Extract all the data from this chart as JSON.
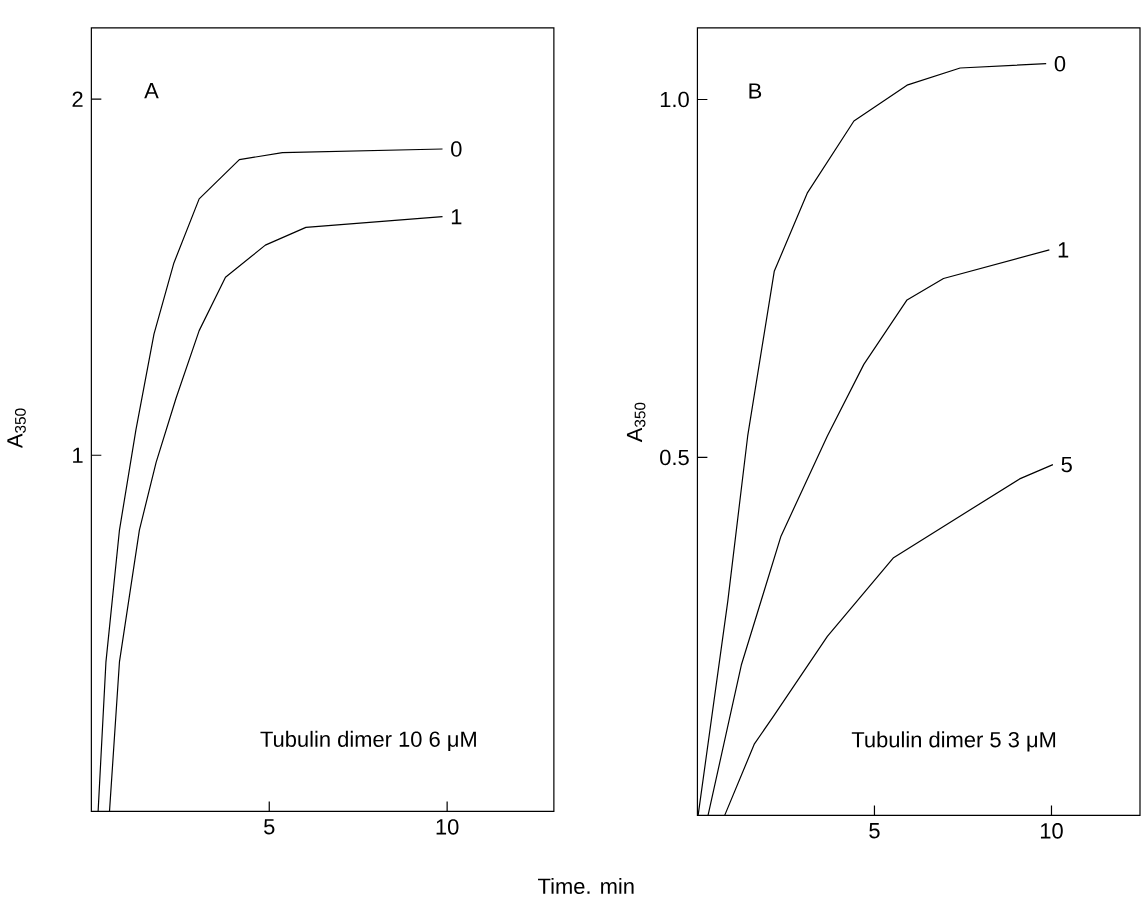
{
  "chart_data": [
    {
      "type": "line",
      "xlabel": "Time. min",
      "ylabel": "A$_{350}$",
      "xlim": [
        0,
        13
      ],
      "ylim": [
        0,
        2.2
      ],
      "xticks": [
        5,
        10
      ],
      "yticks": [
        1,
        2
      ],
      "annotations": [
        "A",
        "Tubulin dimer 10 6 μM"
      ],
      "series": [
        {
          "name": "0",
          "color": "#000000",
          "x": [
            0.19,
            0.41,
            0.79,
            1.25,
            1.76,
            2.32,
            3.03,
            4.16,
            5.37,
            9.87
          ],
          "values": [
            0,
            0.42,
            0.79,
            1.07,
            1.34,
            1.54,
            1.72,
            1.83,
            1.85,
            1.86
          ]
        },
        {
          "name": "1",
          "color": "#000000",
          "x": [
            0.51,
            0.79,
            1.35,
            1.82,
            2.38,
            3.03,
            3.77,
            4.89,
            6.03,
            9.87
          ],
          "values": [
            0,
            0.42,
            0.79,
            0.98,
            1.16,
            1.35,
            1.5,
            1.59,
            1.64,
            1.67
          ]
        }
      ]
    },
    {
      "type": "line",
      "ylabel": "A$_{350}$",
      "xlim": [
        0,
        12.5
      ],
      "ylim": [
        0,
        1.1
      ],
      "xticks": [
        5,
        10
      ],
      "yticks": [
        0.5,
        {
          "value": 1,
          "label": "1.0"
        }
      ],
      "annotations": [
        "B",
        "Tubulin dimer 5 3 μM"
      ],
      "series": [
        {
          "name": "0",
          "color": "#000000",
          "x": [
            0.02,
            0.86,
            1.42,
            2.17,
            3.11,
            4.42,
            5.92,
            7.42,
            9.85
          ],
          "values": [
            0,
            0.3,
            0.53,
            0.76,
            0.87,
            0.97,
            1.02,
            1.044,
            1.05
          ]
        },
        {
          "name": "1",
          "color": "#000000",
          "x": [
            0.3,
            1.24,
            2.36,
            3.67,
            4.7,
            5.92,
            6.95,
            9.94
          ],
          "values": [
            0,
            0.21,
            0.39,
            0.53,
            0.63,
            0.72,
            0.75,
            0.79
          ]
        },
        {
          "name": "5",
          "color": "#000000",
          "x": [
            0.77,
            1.61,
            2.17,
            3.67,
            5.54,
            9.1,
            10.04
          ],
          "values": [
            0,
            0.1,
            0.14,
            0.25,
            0.36,
            0.47,
            0.49
          ]
        }
      ]
    }
  ]
}
